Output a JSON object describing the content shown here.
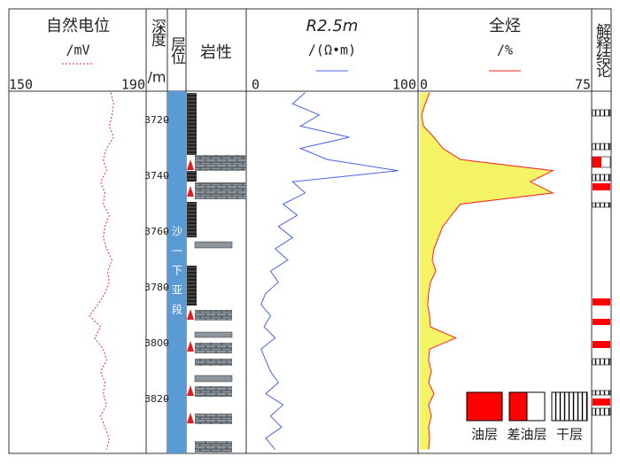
{
  "chart_data": {
    "type": "well-log",
    "depth": {
      "title": "深度",
      "unit": "/m",
      "ylim": [
        3709.5,
        3839.4
      ],
      "yticks": [
        3720,
        3740,
        3760,
        3780,
        3800,
        3820
      ]
    },
    "layer": {
      "title": "层位",
      "label": "沙一下亚段"
    },
    "lithology": {
      "title": "岩性"
    },
    "conclusion": {
      "title": "解释结论"
    },
    "x": [
      3710,
      3714,
      3718,
      3722,
      3726,
      3730,
      3734,
      3738,
      3742,
      3746,
      3750,
      3754,
      3758,
      3762,
      3766,
      3770,
      3774,
      3778,
      3782,
      3786,
      3790,
      3794,
      3798,
      3802,
      3806,
      3810,
      3814,
      3818,
      3822,
      3826,
      3830,
      3834,
      3838
    ],
    "series": [
      {
        "name": "自然电位",
        "unit": "/mV",
        "color": "#e03030",
        "dashed": true,
        "xlim": [
          150,
          190
        ],
        "xticks": [
          150,
          190
        ],
        "values": [
          180.2,
          181,
          180.5,
          179.7,
          181,
          178.9,
          177.9,
          178.9,
          177.1,
          178.4,
          177.9,
          179.7,
          178.4,
          177.9,
          178.9,
          180.5,
          179.2,
          179.7,
          178.4,
          176.3,
          173.7,
          177.1,
          175.3,
          177.9,
          178.9,
          177.1,
          178.4,
          177.9,
          178.9,
          177.1,
          178.4,
          179.7,
          178.9
        ]
      },
      {
        "name": "R2.5m",
        "unit": "/(Ω•m)",
        "color": "#4a64e6",
        "dashed": false,
        "xlim": [
          0,
          100
        ],
        "xticks": [
          0,
          100
        ],
        "values": [
          34,
          26,
          43,
          31,
          62,
          31,
          48,
          93,
          26,
          34,
          20,
          29,
          17,
          26,
          15,
          23,
          12,
          17,
          9,
          6,
          12,
          8,
          15,
          6,
          9,
          12,
          17,
          9,
          20,
          12,
          19,
          9,
          15
        ]
      },
      {
        "name": "全烃",
        "unit": "/%",
        "color": "#ff2020",
        "dashed": false,
        "fill": "#f4f466",
        "xlim": [
          0,
          75
        ],
        "xticks": [
          0,
          75
        ],
        "values": [
          4.3,
          2.4,
          0.8,
          1.6,
          6.3,
          10.2,
          18,
          59,
          49,
          59,
          18,
          14,
          10.2,
          8.2,
          6.3,
          5.5,
          7.1,
          4.7,
          3.9,
          3.5,
          4.3,
          4.7,
          16,
          4.3,
          3.9,
          5.1,
          3.9,
          6.3,
          3.9,
          5.1,
          3.9,
          4.3,
          3.9
        ]
      }
    ],
    "legend": [
      "油层",
      "差油层",
      "干层"
    ]
  }
}
